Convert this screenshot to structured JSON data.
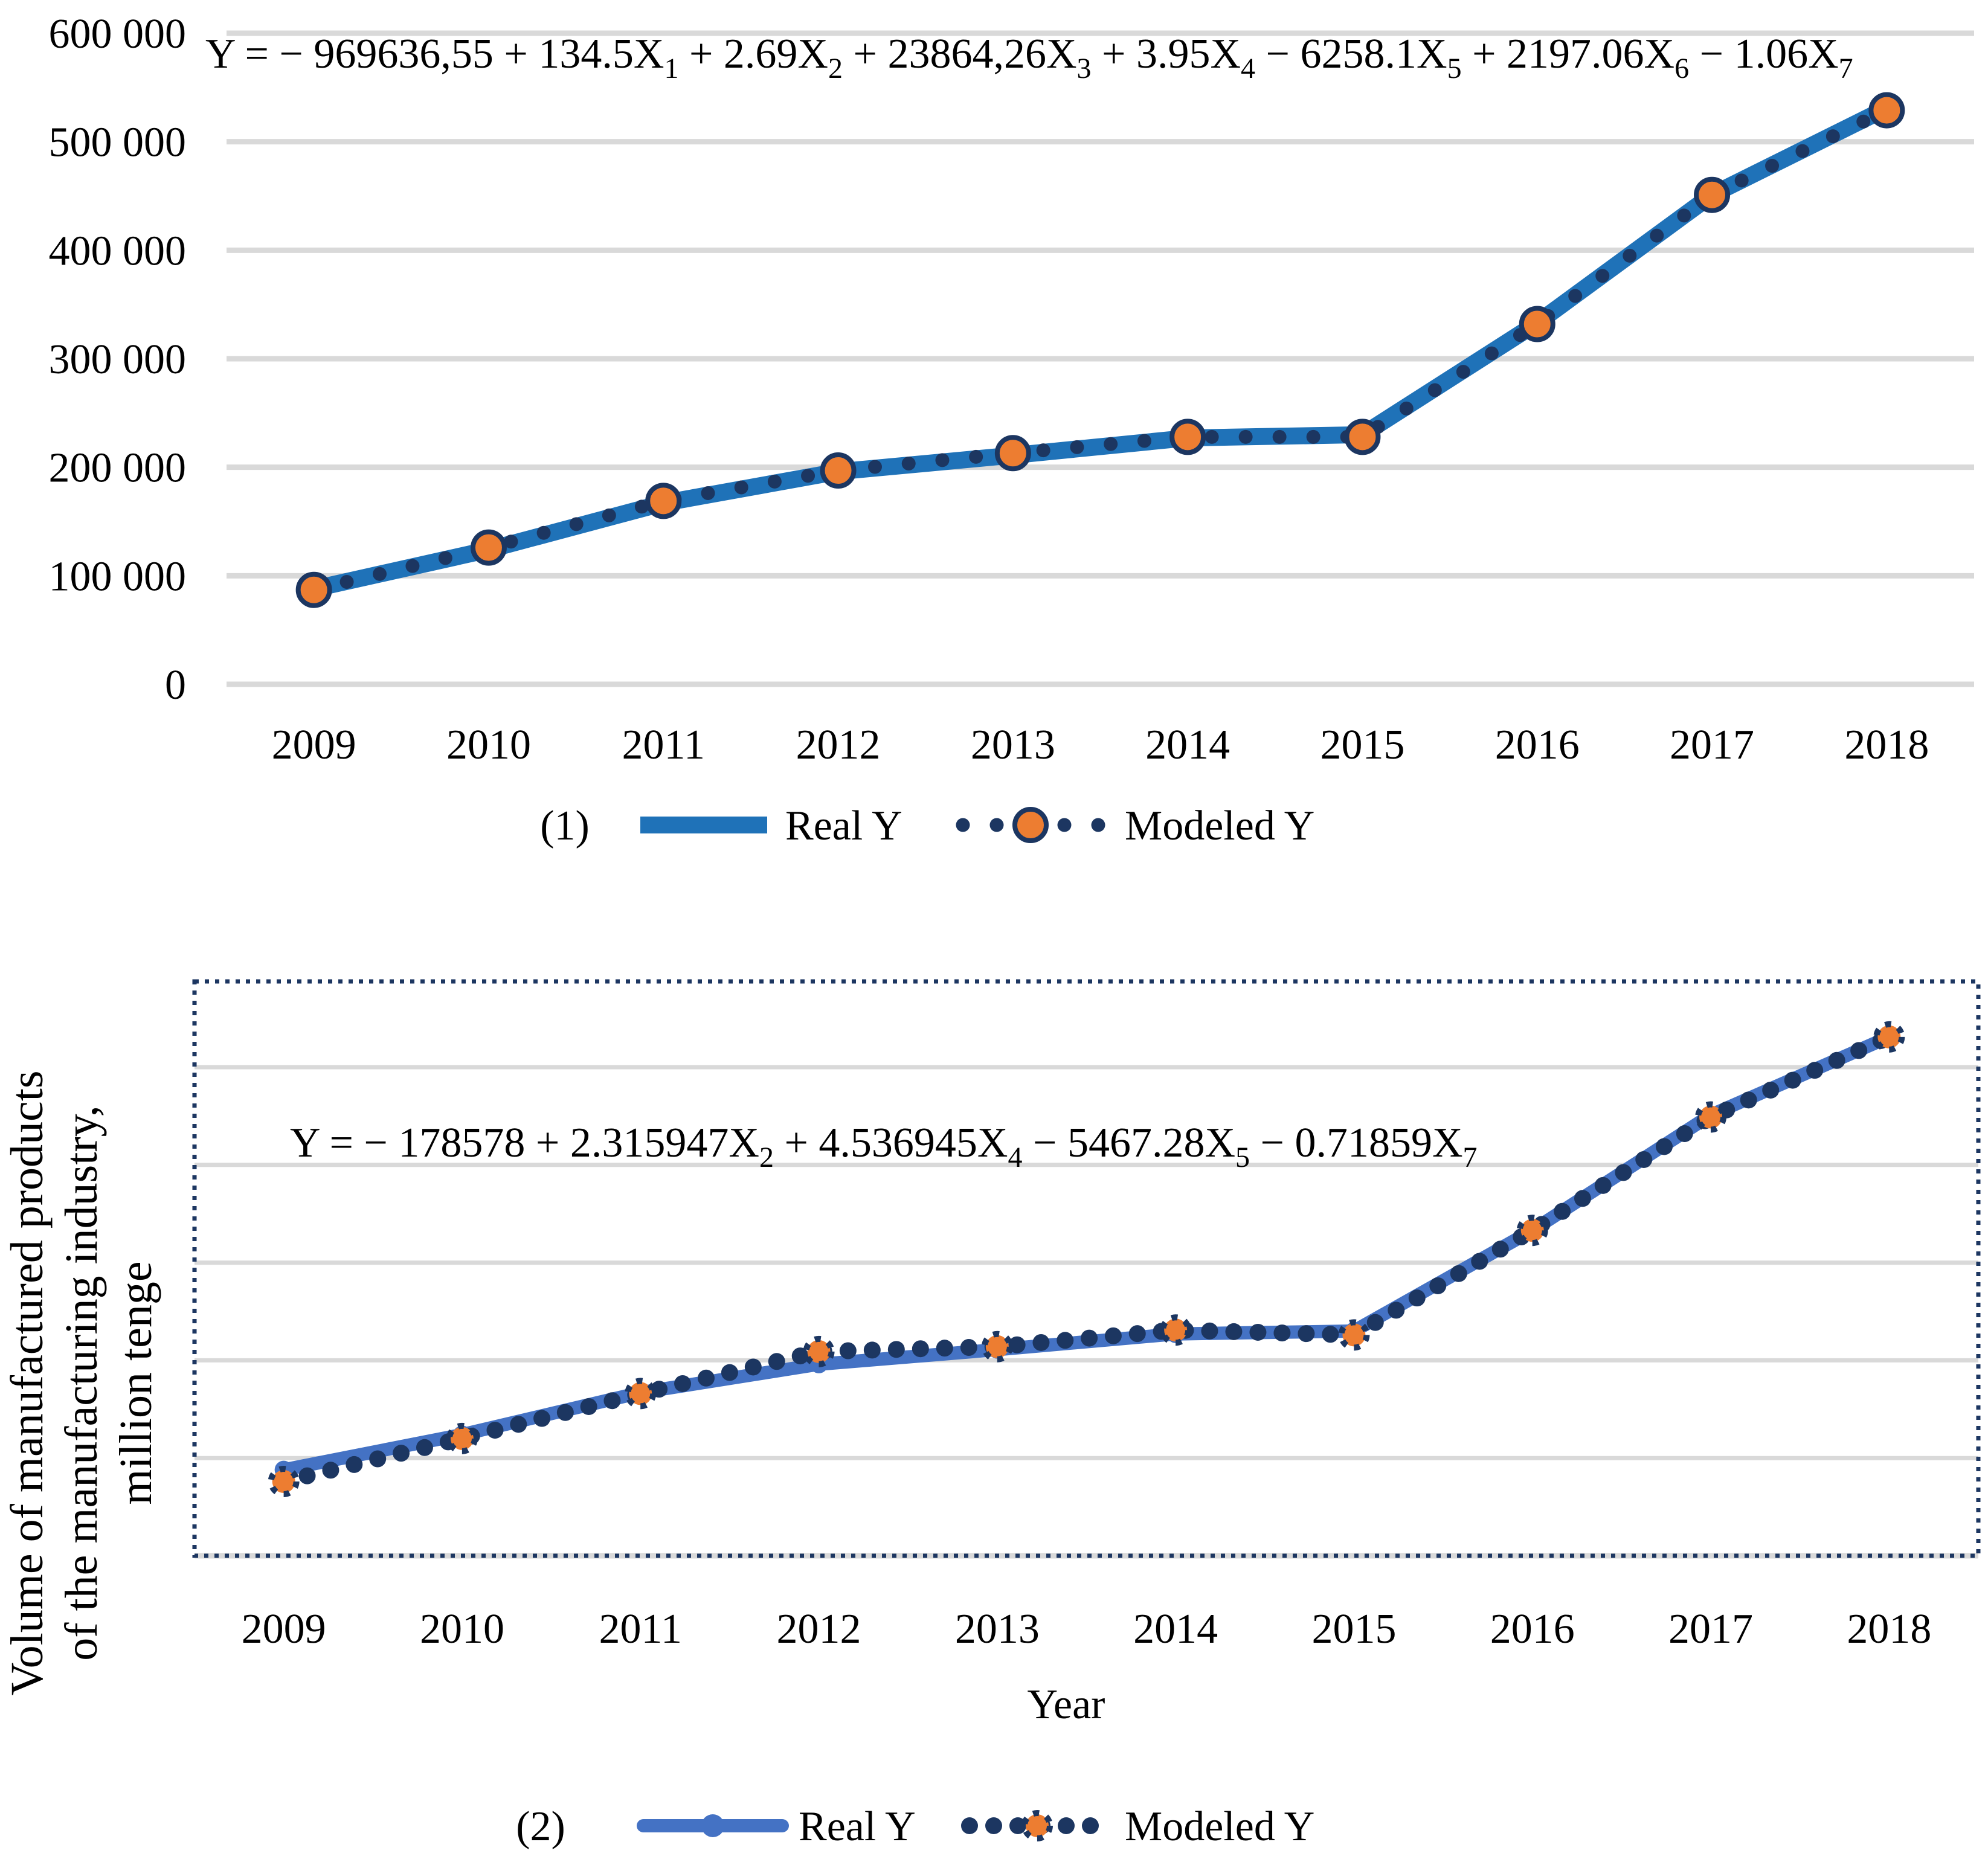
{
  "figure": {
    "background": "#FFFFFF",
    "colors": {
      "real_line_panel1": "#1F72B8",
      "real_line_panel2": "#4472C4",
      "modeled_navy": "#1C3661",
      "marker_orange": "#ED7D31",
      "gridline_gray": "#D9D9D9",
      "text_black": "#000000"
    },
    "panel1": {
      "label": "(1)",
      "equation": "Y = − 969636,55 + 134.5X_1 + 2.69X_2 + 23864,26X_3 + 3.95X_4 − 6258.1X_5 + 2197.06X_6 − 1.06X_7",
      "y_tick_labels": [
        "600 000",
        "500 000",
        "400 000",
        "300 000",
        "200 000",
        "100 000",
        "0"
      ],
      "x_tick_labels": [
        "2009",
        "2010",
        "2011",
        "2012",
        "2013",
        "2014",
        "2015",
        "2016",
        "2017",
        "2018"
      ],
      "legend": {
        "real": "Real Y",
        "modeled": "Modeled Y"
      }
    },
    "panel2": {
      "label": "(2)",
      "equation": "Y = − 178578 + 2.315947X_2 + 4.536945X_4 − 5467.28X_5 − 0.71859X_7",
      "y_axis_title_lines": [
        "Volume of manufactured products",
        "of the manufacturing industry,",
        "million tenge"
      ],
      "x_axis_title": "Year",
      "x_tick_labels": [
        "2009",
        "2010",
        "2011",
        "2012",
        "2013",
        "2014",
        "2015",
        "2016",
        "2017",
        "2018"
      ],
      "legend": {
        "real": "Real Y",
        "modeled": "Modeled Y"
      }
    }
  },
  "chart_data": [
    {
      "type": "line",
      "title": "Y = − 969636,55 + 134.5X1 + 2.69X2 + 23864,26X3 + 3.95X4 − 6258.1X5 + 2197.06X6 − 1.06X7",
      "categories": [
        2009,
        2010,
        2011,
        2012,
        2013,
        2014,
        2015,
        2016,
        2017,
        2018
      ],
      "series": [
        {
          "name": "Real Y",
          "values": [
            88000,
            124000,
            167000,
            196000,
            211000,
            227000,
            230000,
            333000,
            451000,
            531000
          ]
        },
        {
          "name": "Modeled Y",
          "values": [
            87000,
            126000,
            169000,
            197000,
            213000,
            228000,
            228000,
            332000,
            451000,
            529000
          ]
        }
      ],
      "xlabel": "",
      "ylabel": "",
      "ylim": [
        0,
        600000
      ],
      "y_tick_step": 100000,
      "grid": true,
      "legend_position": "bottom"
    },
    {
      "type": "line",
      "title": "Y = − 178578 + 2.315947X2 + 4.536945X4 − 5467.28X5 − 0.71859X7",
      "categories": [
        2009,
        2010,
        2011,
        2012,
        2013,
        2014,
        2015,
        2016,
        2017,
        2018
      ],
      "series": [
        {
          "name": "Real Y",
          "values": [
            88000,
            124000,
            167000,
            196000,
            211000,
            227000,
            230000,
            333000,
            451000,
            531000
          ]
        },
        {
          "name": "Modeled Y",
          "values": [
            76000,
            120000,
            166000,
            209000,
            214000,
            231000,
            226000,
            333000,
            449000,
            531000
          ]
        }
      ],
      "xlabel": "Year",
      "ylabel": "Volume of manufactured products of the manufacturing industry, million tenge",
      "ylim": [
        0,
        588000
      ],
      "y_tick_step": 100000,
      "y_tick_labels_visible": false,
      "grid": true,
      "plot_border": "dotted-navy",
      "legend_position": "bottom"
    }
  ]
}
